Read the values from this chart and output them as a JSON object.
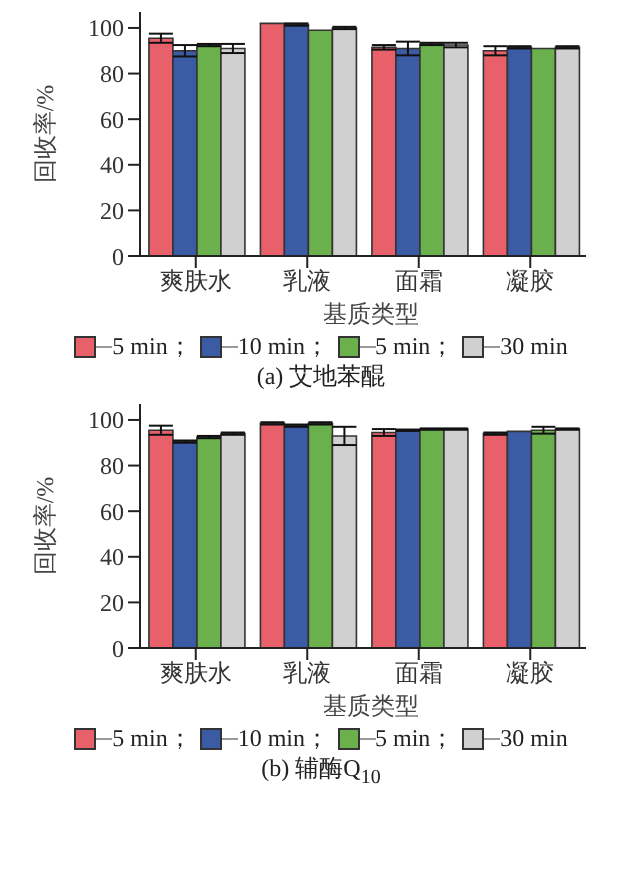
{
  "chart_data": [
    {
      "type": "bar",
      "title": "(a) 艾地苯醌",
      "xlabel": "基质类型",
      "ylabel": "回收率/%",
      "categories": [
        "爽肤水",
        "乳液",
        "面霜",
        "凝胶"
      ],
      "ylim": [
        0,
        107
      ],
      "yticks": [
        0,
        20,
        40,
        60,
        80,
        100
      ],
      "legend": "bottom",
      "series": [
        {
          "name": "5 min；",
          "color": "#e8606a",
          "values": [
            95.5,
            102,
            91.5,
            90
          ],
          "errors": [
            2,
            null,
            1,
            2
          ]
        },
        {
          "name": "10 min；",
          "color": "#3b5ba5",
          "values": [
            90,
            101.5,
            91,
            91.5
          ],
          "errors": [
            2.5,
            0.5,
            3,
            0.5
          ]
        },
        {
          "name": "5 min；",
          "color": "#6ab04c",
          "values": [
            92.5,
            99,
            93,
            91
          ],
          "errors": [
            0.5,
            null,
            0.5,
            null
          ]
        },
        {
          "name": "30 min",
          "color": "#d0d0d0",
          "values": [
            91,
            100,
            92.5,
            91.5
          ],
          "errors": [
            2,
            0.5,
            1,
            0.5
          ]
        }
      ]
    },
    {
      "type": "bar",
      "title": "(b) 辅酶Q$_{10}$",
      "xlabel": "基质类型",
      "ylabel": "回收率/%",
      "categories": [
        "爽肤水",
        "乳液",
        "面霜",
        "凝胶"
      ],
      "ylim": [
        0,
        107
      ],
      "yticks": [
        0,
        20,
        40,
        60,
        80,
        100
      ],
      "legend": "bottom",
      "series": [
        {
          "name": "5 min；",
          "color": "#e8606a",
          "values": [
            95.5,
            98.5,
            94.5,
            94
          ],
          "errors": [
            2,
            0.5,
            1.5,
            0.5
          ]
        },
        {
          "name": "10 min；",
          "color": "#3b5ba5",
          "values": [
            90.5,
            97.5,
            95.5,
            95
          ],
          "errors": [
            0.5,
            0.5,
            0.3,
            null
          ]
        },
        {
          "name": "5 min；",
          "color": "#6ab04c",
          "values": [
            92.5,
            98.5,
            96,
            95.5
          ],
          "errors": [
            0.5,
            0.5,
            0.3,
            1.5
          ]
        },
        {
          "name": "30 min",
          "color": "#d0d0d0",
          "values": [
            94,
            93,
            96,
            96
          ],
          "errors": [
            0.5,
            4,
            0.3,
            0.3
          ]
        }
      ]
    }
  ]
}
